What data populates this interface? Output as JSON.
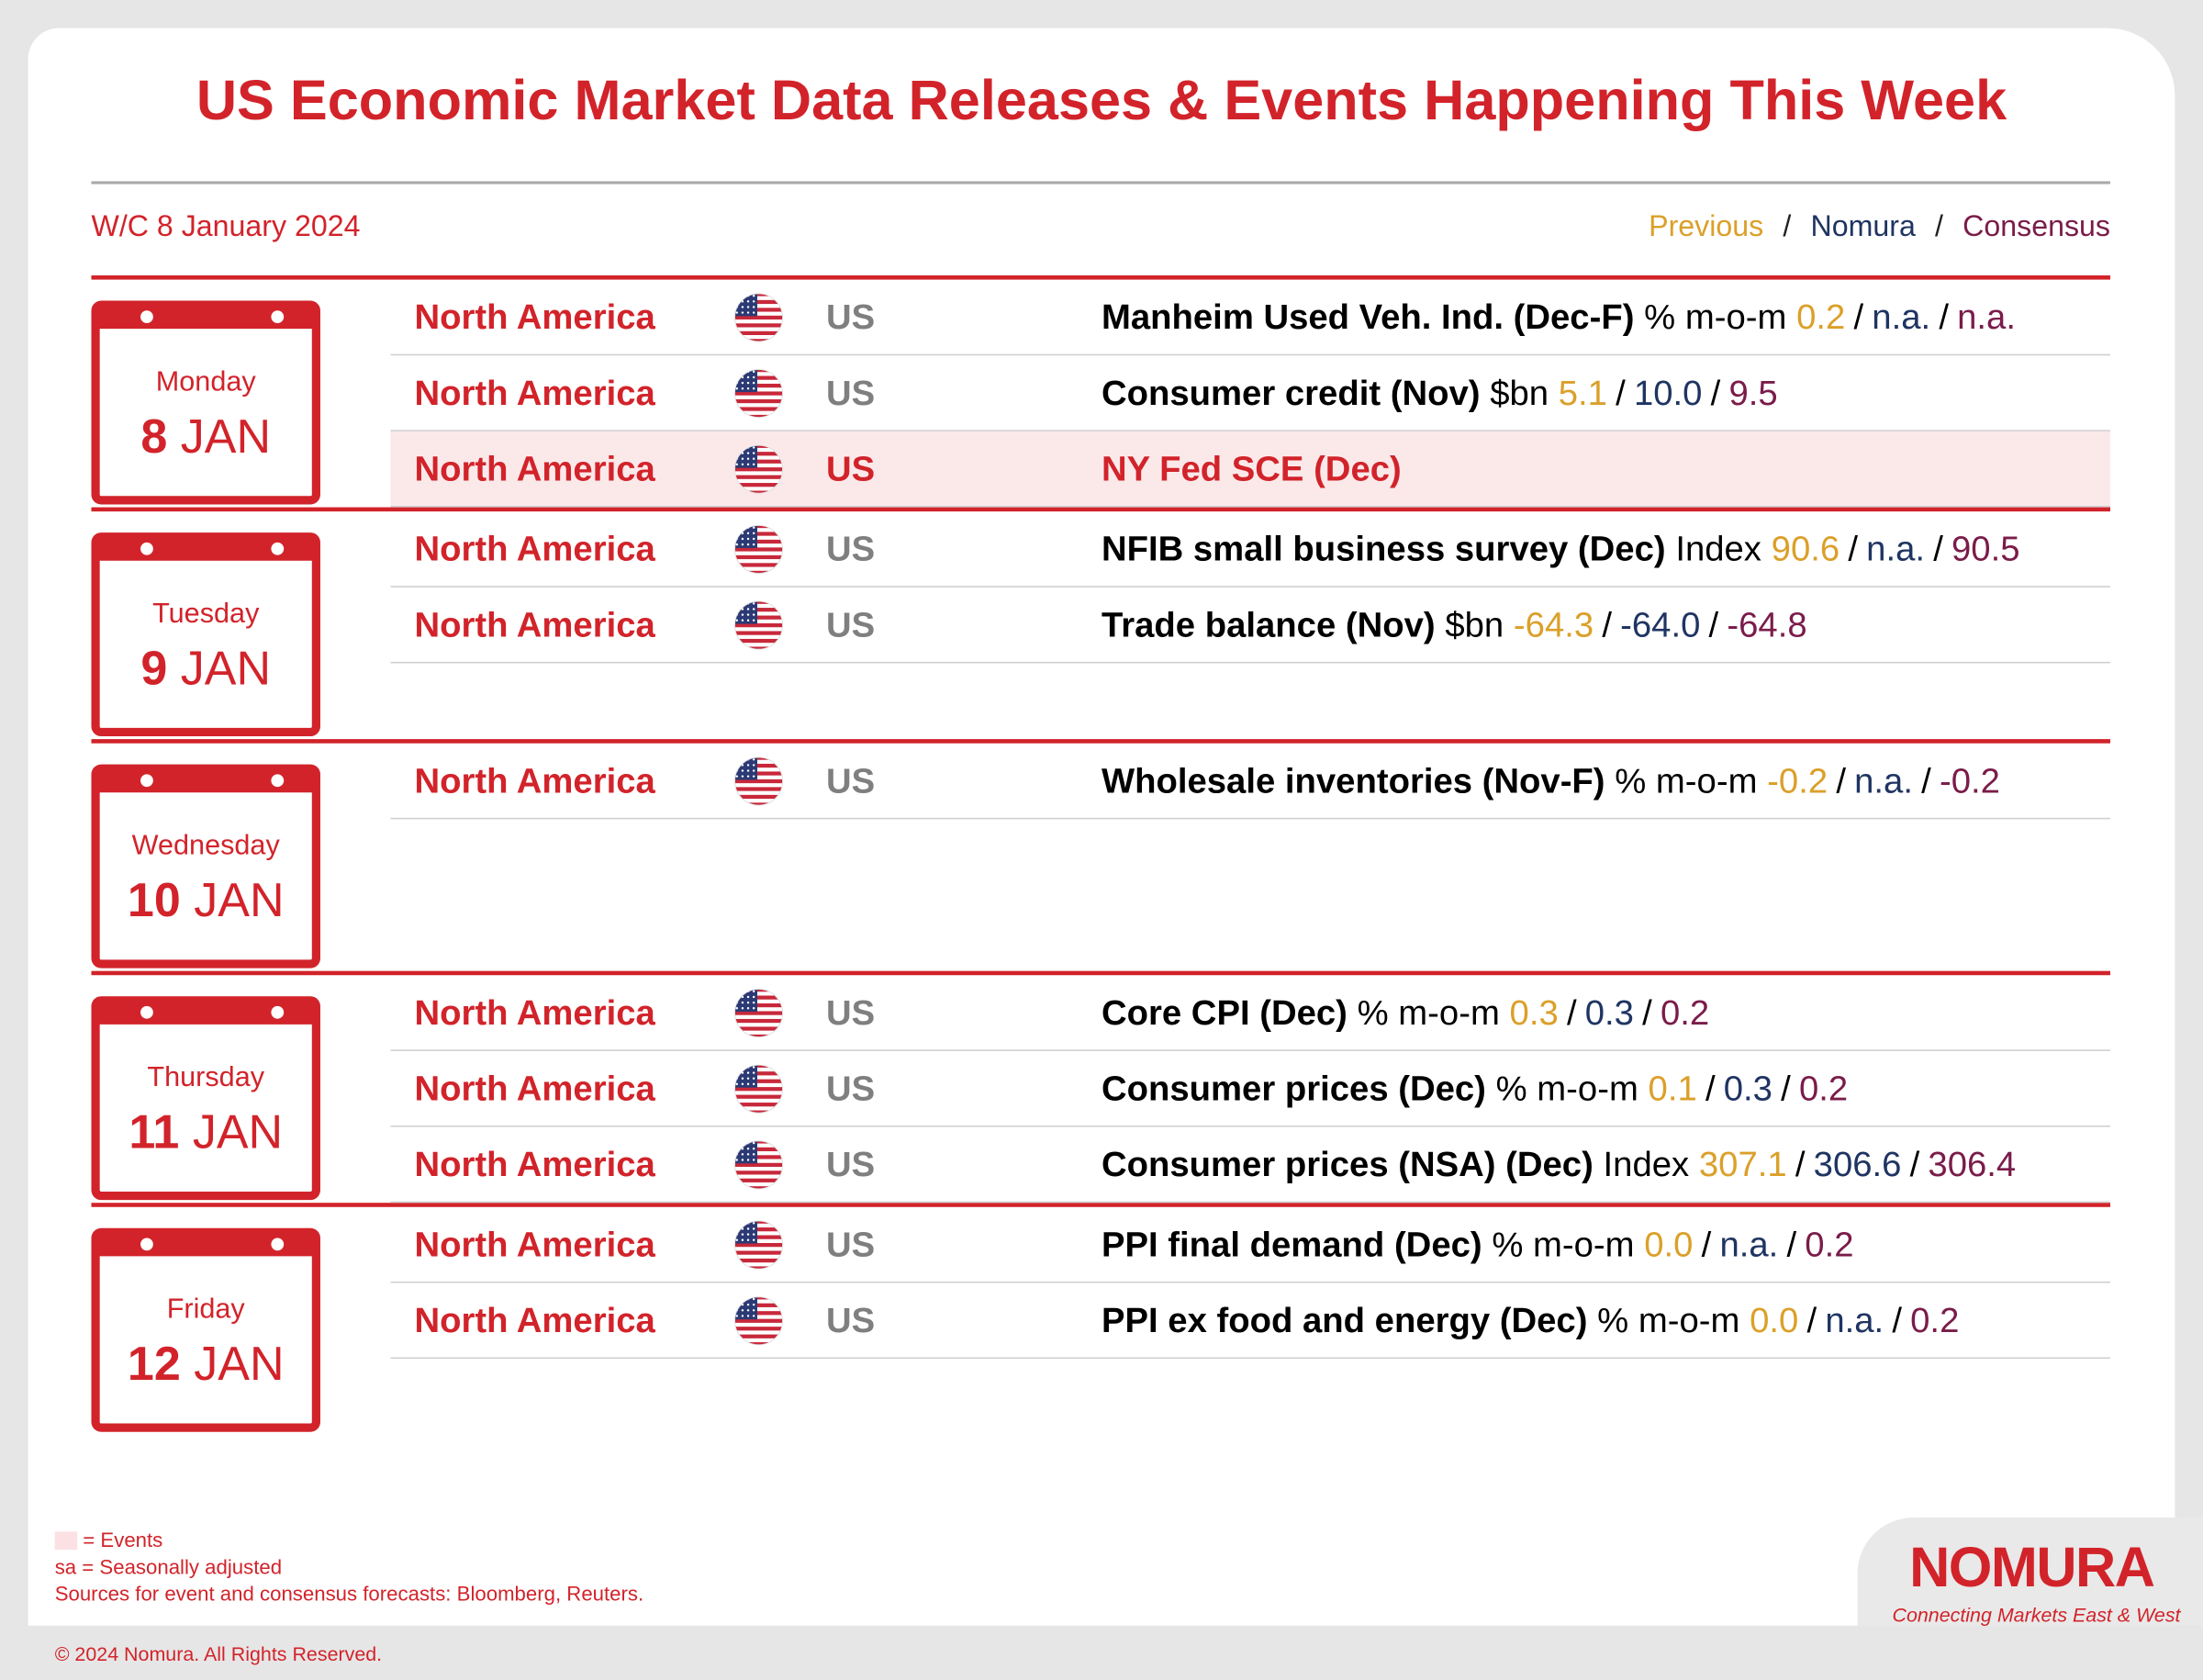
{
  "header": {
    "title": "US Economic Market Data Releases & Events Happening This Week",
    "week": "W/C 8 January 2024",
    "legend": [
      "Previous",
      "Nomura",
      "Consensus"
    ],
    "separator": "/"
  },
  "days": [
    {
      "weekday": "Monday",
      "day": "8",
      "month": "JAN",
      "rows": [
        {
          "region": "North America",
          "country": "US",
          "event": "Manheim Used Veh. Ind. (Dec-F)",
          "unit": "% m-o-m",
          "previous": "0.2",
          "nomura": "n.a.",
          "consensus": "n.a."
        },
        {
          "region": "North America",
          "country": "US",
          "event": "Consumer credit (Nov)",
          "unit": "$bn",
          "previous": "5.1",
          "nomura": "10.0",
          "consensus": "9.5"
        },
        {
          "region": "North America",
          "country": "US",
          "event": "NY Fed SCE (Dec)",
          "is_event": true
        }
      ]
    },
    {
      "weekday": "Tuesday",
      "day": "9",
      "month": "JAN",
      "rows": [
        {
          "region": "North America",
          "country": "US",
          "event": "NFIB small business survey (Dec)",
          "unit": "Index",
          "previous": "90.6",
          "nomura": "n.a.",
          "consensus": "90.5"
        },
        {
          "region": "North America",
          "country": "US",
          "event": "Trade balance (Nov)",
          "unit": "$bn",
          "previous": "-64.3",
          "nomura": "-64.0",
          "consensus": "-64.8"
        }
      ]
    },
    {
      "weekday": "Wednesday",
      "day": "10",
      "month": "JAN",
      "rows": [
        {
          "region": "North America",
          "country": "US",
          "event": "Wholesale inventories (Nov-F)",
          "unit": "% m-o-m",
          "previous": "-0.2",
          "nomura": "n.a.",
          "consensus": "-0.2"
        }
      ]
    },
    {
      "weekday": "Thursday",
      "day": "11",
      "month": "JAN",
      "rows": [
        {
          "region": "North America",
          "country": "US",
          "event": "Core CPI (Dec)",
          "unit": "% m-o-m",
          "previous": "0.3",
          "nomura": "0.3",
          "consensus": "0.2"
        },
        {
          "region": "North America",
          "country": "US",
          "event": "Consumer prices (Dec)",
          "unit": "% m-o-m",
          "previous": "0.1",
          "nomura": "0.3",
          "consensus": "0.2"
        },
        {
          "region": "North America",
          "country": "US",
          "event": "Consumer prices (NSA) (Dec)",
          "unit": "Index",
          "previous": "307.1",
          "nomura": "306.6",
          "consensus": "306.4"
        }
      ]
    },
    {
      "weekday": "Friday",
      "day": "12",
      "month": "JAN",
      "rows": [
        {
          "region": "North America",
          "country": "US",
          "event": "PPI final demand (Dec)",
          "unit": "% m-o-m",
          "previous": "0.0",
          "nomura": "n.a.",
          "consensus": "0.2"
        },
        {
          "region": "North America",
          "country": "US",
          "event": "PPI ex food and energy (Dec)",
          "unit": "% m-o-m",
          "previous": "0.0",
          "nomura": "n.a.",
          "consensus": "0.2"
        }
      ]
    }
  ],
  "footer": {
    "events_key": "= Events",
    "note": "sa = Seasonally adjusted",
    "sources": "Sources for event and consensus forecasts: Bloomberg, Reuters.",
    "copyright": "© 2024 Nomura. All Rights Reserved."
  },
  "logo": {
    "name": "NOMURA",
    "tagline": "Connecting Markets East & West"
  }
}
